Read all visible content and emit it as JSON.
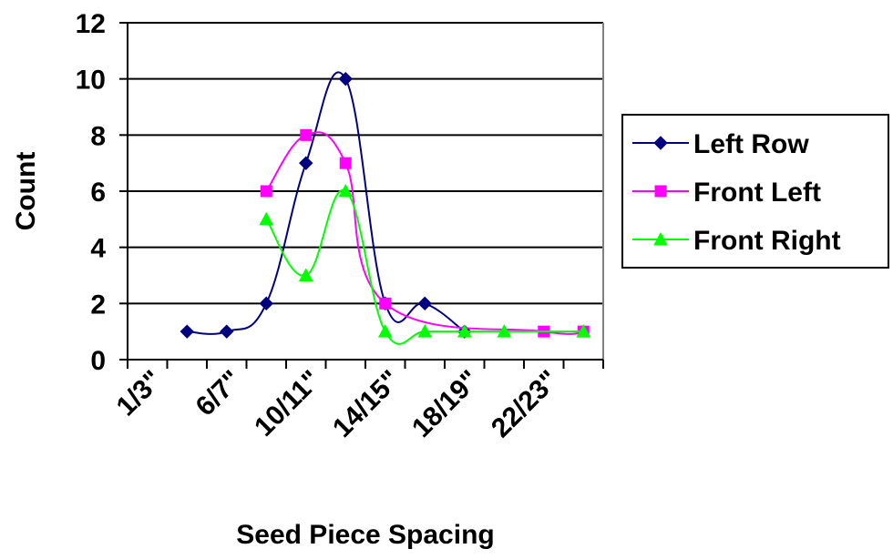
{
  "chart_data": {
    "type": "line",
    "title": "",
    "xlabel": "Seed Piece Spacing",
    "ylabel": "Count",
    "x": [
      1,
      2,
      3,
      4,
      5,
      6,
      7,
      8,
      9,
      10,
      11,
      12
    ],
    "x_tick_labels": [
      "1/3\"",
      "6/7\"",
      "10/11\"",
      "14/15\"",
      "18/19\"",
      "22/23\""
    ],
    "x_tick_label_positions": [
      1,
      3,
      5,
      7,
      9,
      11
    ],
    "xlim": [
      0,
      12
    ],
    "ylim": [
      0,
      12
    ],
    "y_ticks": [
      0,
      2,
      4,
      6,
      8,
      10,
      12
    ],
    "grid": "horizontal major gridlines",
    "legend_position": "right",
    "series": [
      {
        "name": "Left Row",
        "color": "#000080",
        "marker": "diamond",
        "points": [
          [
            1.5,
            1
          ],
          [
            2.5,
            1
          ],
          [
            3.5,
            2
          ],
          [
            4.5,
            7
          ],
          [
            5.5,
            10
          ],
          [
            6.5,
            2
          ],
          [
            7.5,
            2
          ],
          [
            8.5,
            1
          ]
        ]
      },
      {
        "name": "Front Left",
        "color": "#FF00FF",
        "marker": "square",
        "points": [
          [
            3.5,
            6
          ],
          [
            4.5,
            8
          ],
          [
            5.5,
            7
          ],
          [
            6.5,
            2
          ],
          [
            10.5,
            1
          ],
          [
            11.5,
            1
          ]
        ]
      },
      {
        "name": "Front Right",
        "color": "#00FF00",
        "marker": "triangle",
        "points": [
          [
            3.5,
            5
          ],
          [
            4.5,
            3
          ],
          [
            5.5,
            6
          ],
          [
            6.5,
            1
          ],
          [
            7.5,
            1
          ],
          [
            8.5,
            1
          ],
          [
            9.5,
            1
          ],
          [
            11.5,
            1
          ]
        ]
      }
    ]
  }
}
